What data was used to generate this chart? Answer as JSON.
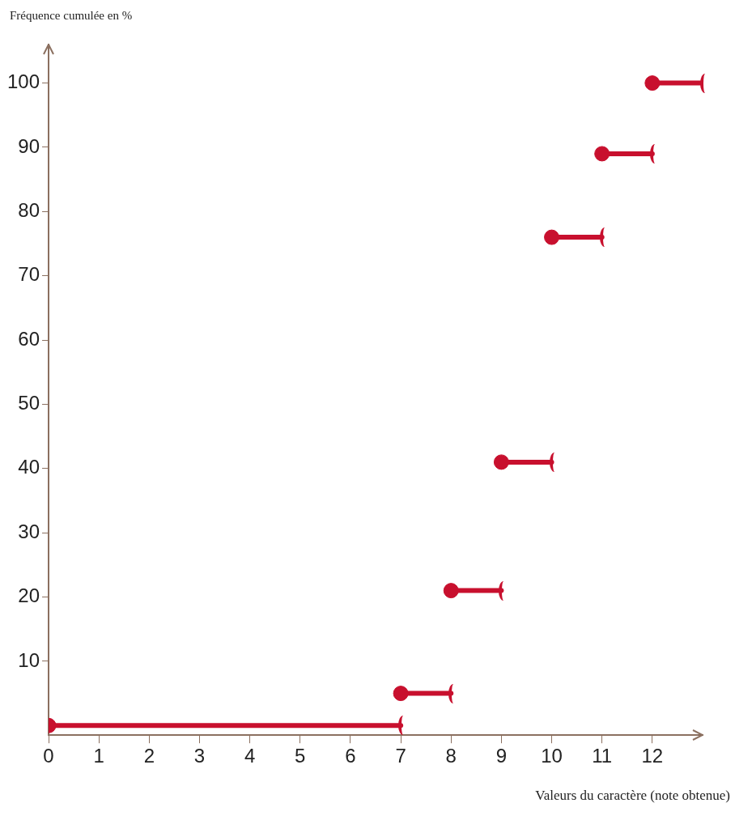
{
  "chart_data": {
    "type": "line",
    "xlabel": "Valeurs du caractère (note obtenue)",
    "ylabel": "Fréquence cumulée en %",
    "series": [
      {
        "color": "#c8102e",
        "x": [
          0,
          7
        ],
        "values": [
          0,
          0
        ]
      },
      {
        "color": "#c8102e",
        "x": [
          7,
          8
        ],
        "values": [
          5,
          5
        ]
      },
      {
        "color": "#c8102e",
        "x": [
          8,
          9
        ],
        "values": [
          21,
          21
        ]
      },
      {
        "color": "#c8102e",
        "x": [
          9,
          10
        ],
        "values": [
          41,
          41
        ]
      },
      {
        "color": "#c8102e",
        "x": [
          10,
          11
        ],
        "values": [
          76,
          76
        ]
      },
      {
        "color": "#c8102e",
        "x": [
          11,
          12
        ],
        "values": [
          89,
          89
        ]
      },
      {
        "color": "#c8102e",
        "x": [
          12,
          13
        ],
        "values": [
          100,
          100
        ]
      },
      {
        "type": "scatter",
        "color": "#c8102e",
        "x": [
          0,
          7,
          8,
          9,
          10,
          11,
          12
        ],
        "values": [
          0,
          5,
          21,
          41,
          76,
          89,
          100
        ]
      }
    ],
    "xlim": [
      0,
      13
    ],
    "xticks": [
      0,
      1,
      2,
      3,
      4,
      5,
      6,
      7,
      8,
      9,
      10,
      11,
      12
    ],
    "ylim": [
      -1.5,
      106
    ],
    "yticks": [
      10,
      20,
      30,
      40,
      50,
      60,
      70,
      80,
      90,
      100
    ],
    "grid": false,
    "legend": false
  }
}
